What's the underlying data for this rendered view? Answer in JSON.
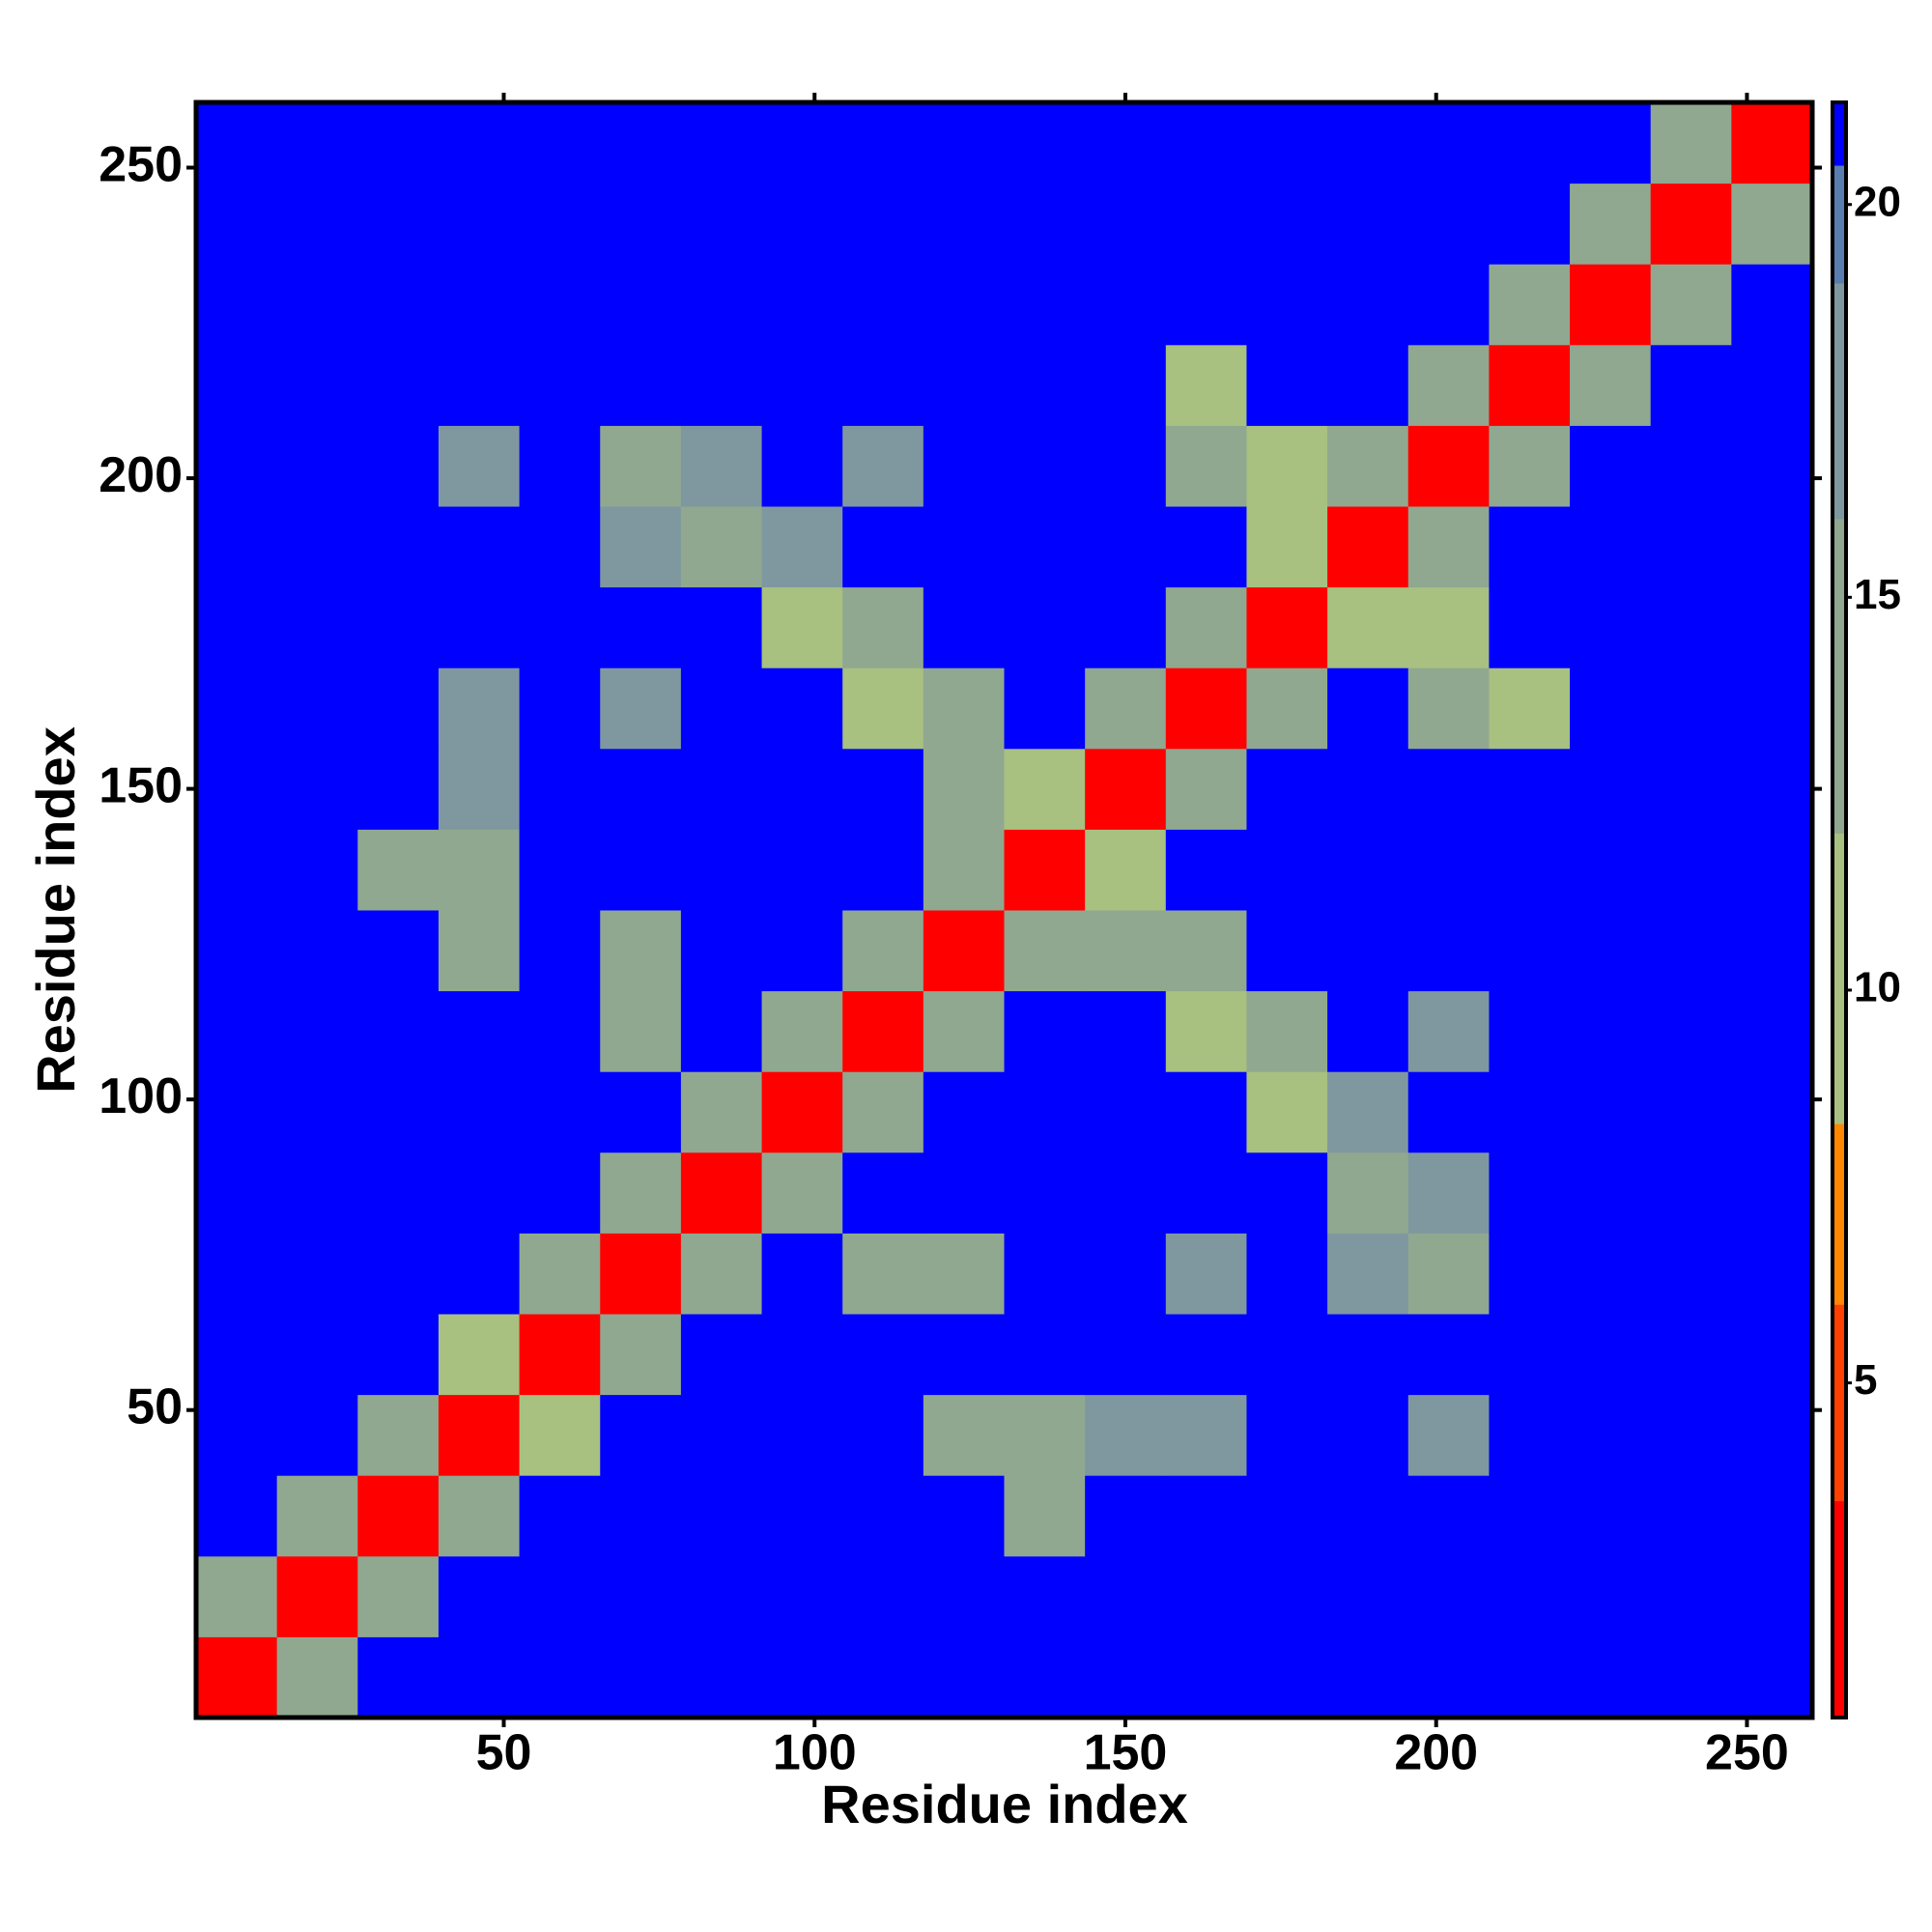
{
  "chart_data": {
    "type": "heatmap",
    "xlabel": "Residue index",
    "ylabel": "Residue index",
    "x": [
      7,
      20,
      33,
      46,
      59,
      72,
      85,
      98,
      111,
      124,
      137,
      150,
      163,
      176,
      189,
      202,
      215,
      228,
      241,
      254
    ],
    "y": [
      7,
      20,
      33,
      46,
      59,
      72,
      85,
      98,
      111,
      124,
      137,
      150,
      163,
      176,
      189,
      202,
      215,
      228,
      241,
      254
    ],
    "z": [
      [
        3,
        12,
        21,
        21,
        21,
        21,
        21,
        21,
        21,
        21,
        21,
        21,
        21,
        21,
        21,
        21,
        21,
        21,
        21,
        21
      ],
      [
        12,
        3,
        12,
        21,
        21,
        21,
        21,
        21,
        21,
        21,
        21,
        21,
        21,
        21,
        21,
        21,
        21,
        21,
        21,
        21
      ],
      [
        21,
        12,
        3,
        12,
        21,
        21,
        21,
        21,
        21,
        21,
        15,
        21,
        21,
        21,
        21,
        21,
        21,
        21,
        21,
        21
      ],
      [
        21,
        21,
        12,
        3,
        10,
        21,
        21,
        21,
        21,
        14,
        12,
        18,
        18,
        21,
        21,
        18,
        21,
        21,
        21,
        21
      ],
      [
        21,
        21,
        21,
        10,
        3,
        12,
        21,
        21,
        21,
        21,
        21,
        21,
        21,
        21,
        21,
        21,
        21,
        21,
        21,
        21
      ],
      [
        21,
        21,
        21,
        21,
        12,
        3,
        12,
        21,
        13,
        15,
        21,
        21,
        17,
        21,
        16,
        12,
        21,
        21,
        21,
        21
      ],
      [
        21,
        21,
        21,
        21,
        21,
        12,
        3,
        12,
        21,
        21,
        21,
        21,
        21,
        21,
        12,
        16,
        21,
        21,
        21,
        21
      ],
      [
        21,
        21,
        21,
        21,
        21,
        21,
        12,
        3,
        12,
        21,
        21,
        21,
        21,
        11,
        17,
        21,
        21,
        21,
        21,
        21
      ],
      [
        21,
        21,
        21,
        21,
        21,
        13,
        21,
        12,
        3,
        12,
        21,
        21,
        11,
        12,
        21,
        17,
        21,
        21,
        21,
        21
      ],
      [
        21,
        21,
        21,
        14,
        21,
        15,
        21,
        21,
        12,
        3,
        12,
        15,
        12,
        21,
        21,
        21,
        21,
        21,
        21,
        21
      ],
      [
        21,
        21,
        15,
        12,
        21,
        21,
        21,
        21,
        21,
        12,
        3,
        10,
        21,
        21,
        21,
        21,
        21,
        21,
        21,
        21
      ],
      [
        21,
        21,
        21,
        18,
        21,
        21,
        21,
        21,
        21,
        15,
        10,
        3,
        12,
        21,
        21,
        21,
        21,
        21,
        21,
        21
      ],
      [
        21,
        21,
        21,
        18,
        21,
        17,
        21,
        21,
        11,
        12,
        21,
        12,
        3,
        12,
        21,
        12,
        11,
        21,
        21,
        21
      ],
      [
        21,
        21,
        21,
        21,
        21,
        21,
        21,
        11,
        12,
        21,
        21,
        21,
        12,
        3,
        10,
        11,
        21,
        21,
        21,
        21
      ],
      [
        21,
        21,
        21,
        21,
        21,
        16,
        12,
        17,
        21,
        21,
        21,
        21,
        21,
        10,
        3,
        12,
        21,
        21,
        21,
        21
      ],
      [
        21,
        21,
        21,
        18,
        21,
        12,
        16,
        21,
        17,
        21,
        21,
        21,
        12,
        11,
        12,
        3,
        12,
        21,
        21,
        21
      ],
      [
        21,
        21,
        21,
        21,
        21,
        21,
        21,
        21,
        21,
        21,
        21,
        21,
        11,
        21,
        21,
        12,
        3,
        12,
        21,
        21
      ],
      [
        21,
        21,
        21,
        21,
        21,
        21,
        21,
        21,
        21,
        21,
        21,
        21,
        21,
        21,
        21,
        21,
        12,
        3,
        12,
        21
      ],
      [
        21,
        21,
        21,
        21,
        21,
        21,
        21,
        21,
        21,
        21,
        21,
        21,
        21,
        21,
        21,
        21,
        21,
        12,
        3,
        12
      ],
      [
        21,
        21,
        21,
        21,
        21,
        21,
        21,
        21,
        21,
        21,
        21,
        21,
        21,
        21,
        21,
        21,
        21,
        21,
        12,
        3
      ]
    ],
    "xlim": [
      0.5,
      260.5
    ],
    "ylim": [
      0.5,
      260.5
    ],
    "xticks": [
      50,
      100,
      150,
      200,
      250
    ],
    "yticks": [
      50,
      100,
      150,
      200,
      250
    ],
    "clim": [
      0.74,
      21.3
    ],
    "cticks": [
      5,
      10,
      15,
      20
    ],
    "colorscale": [
      {
        "value": 0.74,
        "color": "#ff0000"
      },
      {
        "value": 3.5,
        "color": "#ff4000"
      },
      {
        "value": 6,
        "color": "#ff8800"
      },
      {
        "value": 8.3,
        "color": "#a8c080"
      },
      {
        "value": 12,
        "color": "#90a890"
      },
      {
        "value": 16,
        "color": "#7f98a0"
      },
      {
        "value": 19,
        "color": "#5a7db0"
      },
      {
        "value": 20.5,
        "color": "#0000ff"
      }
    ]
  }
}
